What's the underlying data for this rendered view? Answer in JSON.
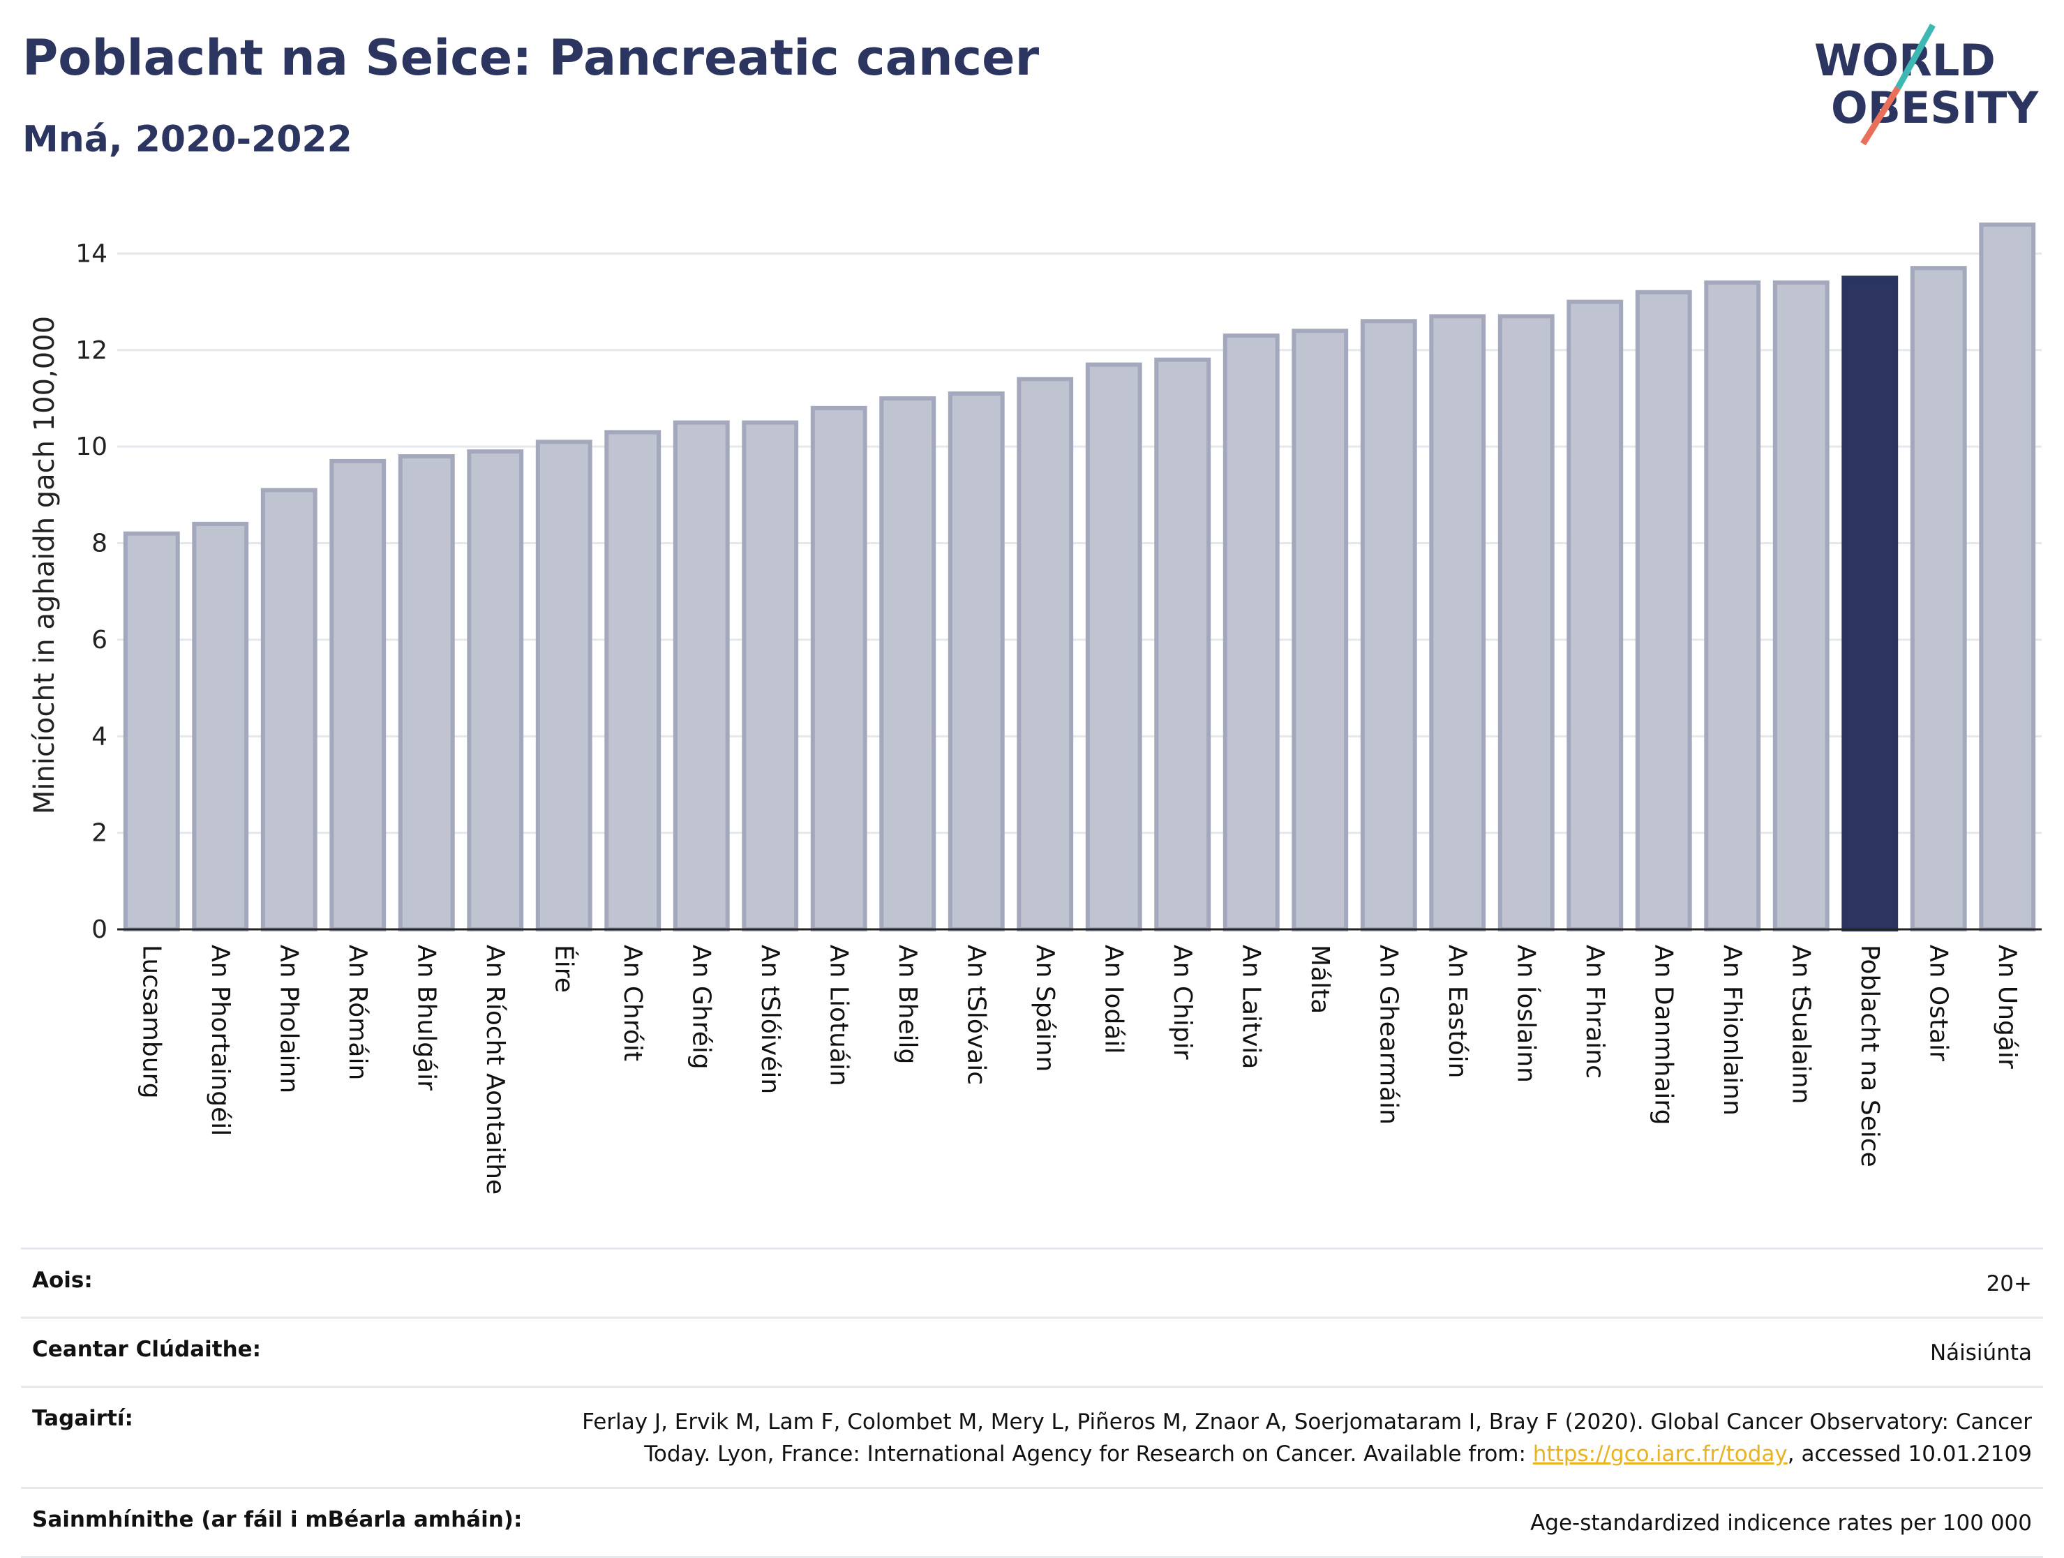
{
  "header": {
    "title": "Poblacht na Seice: Pancreatic cancer",
    "subtitle": "Mná, 2020-2022"
  },
  "logo": {
    "line1": "WORLD",
    "line2": "OBESITY"
  },
  "colors": {
    "bar": "#c0c3d0",
    "bar_stroke": "#a3a8bd",
    "highlight": "#2b3560",
    "title": "#2b3560",
    "logo_teal": "#3fb8b4",
    "logo_coral": "#e8705a"
  },
  "chart_data": {
    "type": "bar",
    "ylabel": "Minicíocht in aghaidh gach 100,000",
    "ylim": [
      0,
      14.7
    ],
    "yticks": [
      0,
      2,
      4,
      6,
      8,
      10,
      12,
      14
    ],
    "grid": true,
    "highlight": "Poblacht na Seice",
    "categories": [
      "Lucsamburg",
      "An Phortaingéil",
      "An Pholainn",
      "An Rómáin",
      "An Bhulgáir",
      "An Ríocht Aontaithe",
      "Éire",
      "An Chróit",
      "An Ghréig",
      "An tSlóivéin",
      "An Liotuáin",
      "An Bheilg",
      "An tSlóvaic",
      "An Spáinn",
      "An Iodáil",
      "An Chipir",
      "An Laitvia",
      "Málta",
      "An Ghearmáin",
      "An Eastóin",
      "An Íoslainn",
      "An Fhrainc",
      "An Danmhairg",
      "An Fhionlainn",
      "An tSualainn",
      "Poblacht na Seice",
      "An Ostair",
      "An Ungáir"
    ],
    "values": [
      8.2,
      8.4,
      9.1,
      9.7,
      9.8,
      9.9,
      10.1,
      10.3,
      10.5,
      10.5,
      10.8,
      11.0,
      11.1,
      11.4,
      11.7,
      11.8,
      12.3,
      12.4,
      12.6,
      12.7,
      12.7,
      13.0,
      13.2,
      13.4,
      13.4,
      13.5,
      13.7,
      14.6
    ]
  },
  "info": [
    {
      "label": "Aois:",
      "value": "20+"
    },
    {
      "label": "Ceantar Clúdaithe:",
      "value": "Náisiúnta"
    },
    {
      "label": "Tagairtí:",
      "value_pre": "Ferlay J, Ervik M, Lam F, Colombet M, Mery L, Piñeros M, Znaor A, Soerjomataram I, Bray F (2020). Global Cancer Observatory: Cancer Today. Lyon, France: International Agency for Research on Cancer. Available from: ",
      "link": "https://gco.iarc.fr/today",
      "value_post": ", accessed 10.01.2109"
    },
    {
      "label": "Sainmhínithe (ar fáil i mBéarla amháin):",
      "value": "Age-standardized indicence rates per 100 000"
    }
  ]
}
